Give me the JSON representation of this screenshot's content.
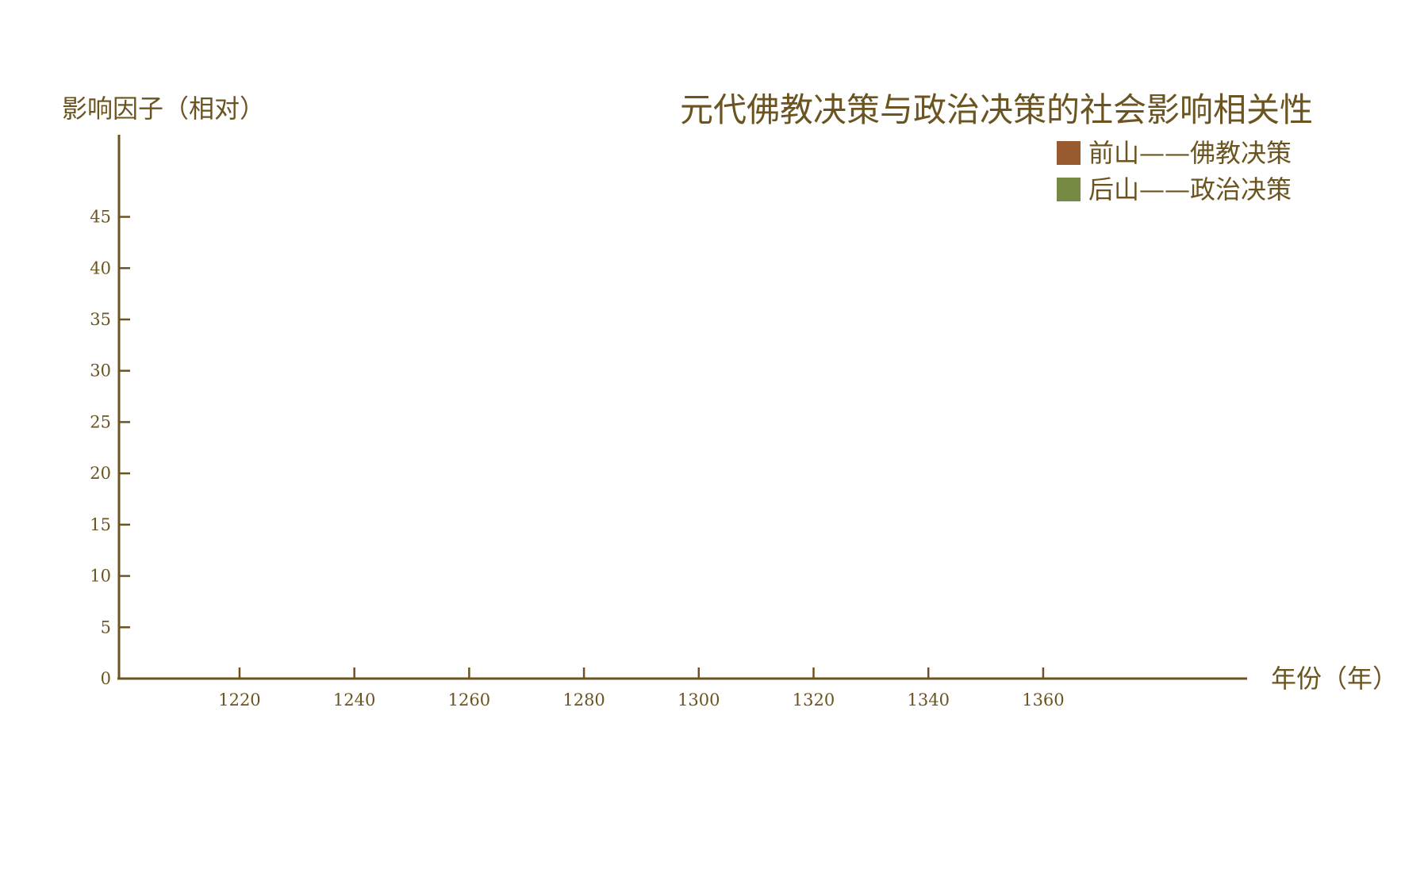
{
  "chart_data": {
    "type": "bar",
    "title": "元代佛教决策与政治决策的社会影响相关性",
    "xlabel": "年份（年）",
    "ylabel": "影响因子（相对）",
    "x_ticks": [
      1220,
      1240,
      1260,
      1280,
      1300,
      1320,
      1340,
      1360
    ],
    "y_ticks": [
      0,
      5,
      10,
      15,
      20,
      25,
      30,
      35,
      40,
      45
    ],
    "xlim": [
      1199,
      1390
    ],
    "ylim": [
      0,
      53
    ],
    "grid": false,
    "legend_position": "top-right",
    "series": [
      {
        "name": "前山——佛教决策",
        "color": "#9a5a30",
        "values": []
      },
      {
        "name": "后山——政治决策",
        "color": "#768a45",
        "values": []
      }
    ]
  },
  "colors": {
    "ink": "#6b5420",
    "background": "#ffffff"
  }
}
